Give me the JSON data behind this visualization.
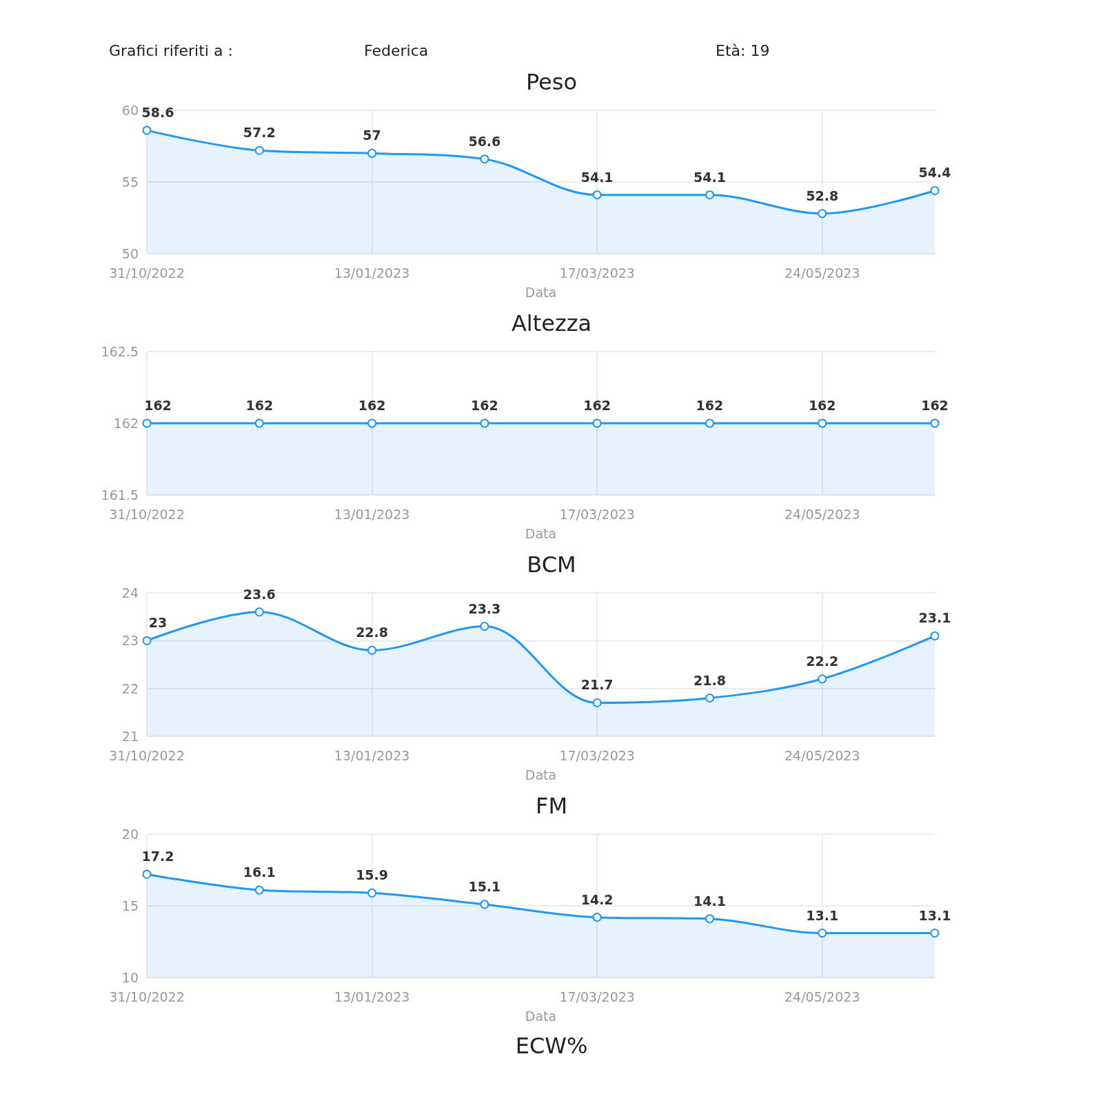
{
  "chart_data": [
    {
      "type": "area",
      "title": "Peso",
      "xlabel": "Data",
      "annotations": [
        "Grafici riferiti a :",
        "Federica",
        "Età: 19"
      ],
      "categories": [
        "31/10/2022",
        null,
        "13/01/2023",
        null,
        "17/03/2023",
        null,
        "24/05/2023",
        null
      ],
      "values": [
        58.6,
        57.2,
        57,
        56.6,
        54.1,
        54.1,
        52.8,
        54.4
      ],
      "color": "#2196f3",
      "ylim": [
        50,
        60
      ],
      "yticks": [
        50,
        55,
        60
      ],
      "grid": true,
      "marker": "circle",
      "data_labels": true
    },
    {
      "type": "area",
      "title": "Altezza",
      "xlabel": "Data",
      "categories": [
        "31/10/2022",
        null,
        "13/01/2023",
        null,
        "17/03/2023",
        null,
        "24/05/2023",
        null
      ],
      "values": [
        162,
        162,
        162,
        162,
        162,
        162,
        162,
        162
      ],
      "color": "#2196f3",
      "ylim": [
        161.5,
        162.5
      ],
      "yticks": [
        161.5,
        162,
        162.5
      ],
      "grid": true,
      "marker": "circle",
      "data_labels": true
    },
    {
      "type": "area",
      "title": "BCM",
      "xlabel": "Data",
      "categories": [
        "31/10/2022",
        null,
        "13/01/2023",
        null,
        "17/03/2023",
        null,
        "24/05/2023",
        null
      ],
      "values": [
        23,
        23.6,
        22.8,
        23.3,
        21.7,
        21.8,
        22.2,
        23.1
      ],
      "color": "#2196f3",
      "ylim": [
        21,
        24
      ],
      "yticks": [
        21,
        22,
        23,
        24
      ],
      "grid": true,
      "marker": "circle",
      "data_labels": true
    },
    {
      "type": "area",
      "title": "FM",
      "xlabel": "Data",
      "annotations": [
        "ECW%"
      ],
      "categories": [
        "31/10/2022",
        null,
        "13/01/2023",
        null,
        "17/03/2023",
        null,
        "24/05/2023",
        null
      ],
      "values": [
        17.2,
        16.1,
        15.9,
        15.1,
        14.2,
        14.1,
        13.1,
        13.1
      ],
      "color": "#2196f3",
      "ylim": [
        10,
        20
      ],
      "yticks": [
        10,
        15,
        20
      ],
      "grid": true,
      "marker": "circle",
      "data_labels": true
    }
  ]
}
